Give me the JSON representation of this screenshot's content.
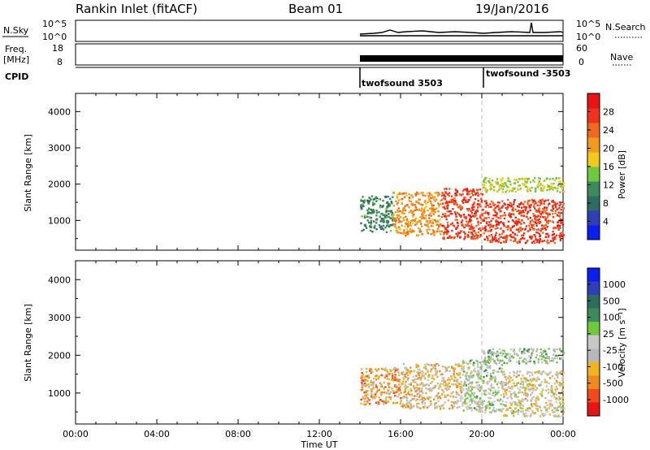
{
  "header": {
    "station": "Rankin Inlet (fitACF)",
    "beam": "Beam 01",
    "date": "19/Jan/2016"
  },
  "strips": {
    "nsky_label": "N.Sky",
    "nsky_ticks": [
      "10^5",
      "10^0"
    ],
    "nsearch_label": "N.Search",
    "nsearch_ticks": [
      "10^5",
      "10^0"
    ],
    "freq_label_line1": "Freq.",
    "freq_label_line2": "[MHz]",
    "freq_ticks": [
      "18",
      "8"
    ],
    "nave_label": "Nave",
    "nave_ticks": [
      "60",
      "0"
    ],
    "cpid_label": "CPID",
    "cpid_segments": [
      {
        "name": "twofsound 3503",
        "start_hour": 14.0
      },
      {
        "name": "twofsound -3503",
        "start_hour": 20.0
      }
    ]
  },
  "colors": {
    "power": [
      "#0a1ef0",
      "#2f3fb8",
      "#2e6c62",
      "#3f8a5a",
      "#6fc83e",
      "#f0c81e",
      "#f09a1e",
      "#f06a1e",
      "#f0321e",
      "#e61414"
    ],
    "velocity": [
      "#e61414",
      "#f04a1e",
      "#f08a1e",
      "#f0b41e",
      "#b8b8b8",
      "#c8c8c8",
      "#6fc83e",
      "#3f8a5a",
      "#2e6c62",
      "#2f3fb8",
      "#0a1ef0"
    ]
  },
  "chart_data": [
    {
      "type": "heatmap",
      "name": "power",
      "xlabel": "",
      "ylabel": "Slant Range [km]",
      "x_range_hours": [
        0,
        24
      ],
      "ylim": [
        180,
        4500
      ],
      "y_ticks": [
        1000,
        2000,
        3000,
        4000
      ],
      "colorbar_label": "Power [dB]",
      "colorbar_range": [
        0,
        32
      ],
      "colorbar_ticks": [
        4,
        8,
        12,
        16,
        20,
        24,
        28
      ],
      "data_region": {
        "x_hours": [
          14.0,
          24.0
        ],
        "y_km": [
          250,
          2300
        ]
      },
      "approx_cells": [
        {
          "x0": 14.0,
          "x1": 15.6,
          "y0": 700,
          "y1": 1700,
          "value": 10
        },
        {
          "x0": 15.6,
          "x1": 18.0,
          "y0": 600,
          "y1": 1800,
          "value": 22
        },
        {
          "x0": 18.0,
          "x1": 20.0,
          "y0": 500,
          "y1": 1900,
          "value": 28
        },
        {
          "x0": 20.0,
          "x1": 24.0,
          "y0": 400,
          "y1": 1600,
          "value": 28
        },
        {
          "x0": 20.0,
          "x1": 24.0,
          "y0": 1800,
          "y1": 2200,
          "value": 16
        }
      ]
    },
    {
      "type": "heatmap",
      "name": "velocity",
      "xlabel": "Time UT",
      "ylabel": "Slant Range [km]",
      "x_range_hours": [
        0,
        24
      ],
      "ylim": [
        180,
        4500
      ],
      "y_ticks": [
        1000,
        2000,
        3000,
        4000
      ],
      "x_ticks": [
        "00:00",
        "04:00",
        "08:00",
        "12:00",
        "16:00",
        "20:00",
        "00:00"
      ],
      "colorbar_label": "Velocity [m s⁻¹]",
      "colorbar_ticks": [
        "1000",
        "500",
        "100",
        "25",
        "-25",
        "-100",
        "-500",
        "-1000"
      ],
      "data_region": {
        "x_hours": [
          14.0,
          24.0
        ],
        "y_km": [
          250,
          2300
        ]
      },
      "approx_cells": [
        {
          "x0": 14.0,
          "x1": 16.0,
          "y0": 700,
          "y1": 1700,
          "value": -500
        },
        {
          "x0": 16.0,
          "x1": 19.0,
          "y0": 600,
          "y1": 1800,
          "value": -300
        },
        {
          "x0": 19.0,
          "x1": 21.0,
          "y0": 500,
          "y1": 1900,
          "value": 0
        },
        {
          "x0": 21.0,
          "x1": 24.0,
          "y0": 400,
          "y1": 1600,
          "value": -200
        },
        {
          "x0": 20.0,
          "x1": 24.0,
          "y0": 1800,
          "y1": 2200,
          "value": 50
        }
      ]
    }
  ]
}
